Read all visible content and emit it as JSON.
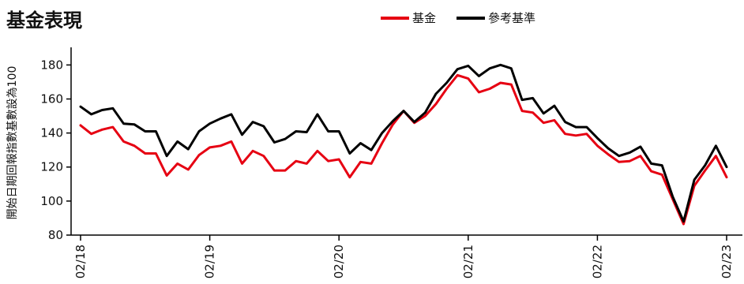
{
  "title": "基金表現",
  "chart_data": {
    "type": "line",
    "title": "基金表現",
    "ylabel": "開始日期回報指數基數設為100",
    "xlabel": "",
    "ylim": [
      80,
      195
    ],
    "yticks": [
      80,
      100,
      120,
      140,
      160,
      180
    ],
    "xticks": [
      {
        "label": "02/18",
        "index": 0
      },
      {
        "label": "02/19",
        "index": 12
      },
      {
        "label": "02/20",
        "index": 24
      },
      {
        "label": "02/21",
        "index": 36
      },
      {
        "label": "02/22",
        "index": 48
      },
      {
        "label": "02/23",
        "index": 60
      }
    ],
    "legend_position": "top-right",
    "series": [
      {
        "name": "基金",
        "color": "#e60012",
        "values": [
          144.5,
          139.5,
          142,
          143.5,
          135,
          132.5,
          128,
          128,
          115,
          122,
          118.5,
          127,
          131.5,
          132.5,
          135,
          122,
          129.5,
          126.5,
          118,
          118,
          123.5,
          122,
          129.5,
          123.5,
          124.5,
          114,
          123,
          122,
          134,
          145,
          153,
          146,
          150,
          157,
          166,
          174,
          172,
          164,
          166,
          169.5,
          168.5,
          153,
          152,
          146,
          147.5,
          139.5,
          138.5,
          139.5,
          132.5,
          127.5,
          123,
          123.5,
          126.5,
          117.5,
          115.5,
          101,
          86.5,
          109,
          118,
          126.5,
          114
        ]
      },
      {
        "name": "參考基準",
        "color": "#000000",
        "values": [
          155.5,
          151,
          153.5,
          154.5,
          145.5,
          145,
          141,
          141,
          126.5,
          135,
          130.5,
          141,
          145.5,
          148.5,
          151,
          139,
          146.5,
          144,
          134.5,
          136.5,
          141,
          140.5,
          151,
          141,
          141,
          128,
          134,
          130,
          140,
          147,
          153,
          146.5,
          152,
          163,
          169.5,
          177.5,
          179.5,
          173.5,
          178,
          180,
          178,
          159.5,
          160.5,
          151.5,
          156,
          146.5,
          143.5,
          143.5,
          137,
          131,
          126.5,
          128.5,
          132,
          122,
          121,
          102.5,
          88,
          112.5,
          121,
          132.5,
          120
        ]
      }
    ]
  }
}
